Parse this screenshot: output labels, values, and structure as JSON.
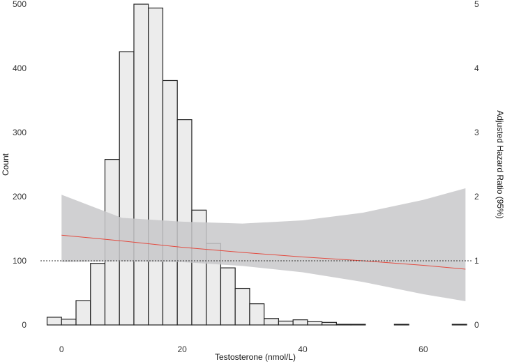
{
  "chart_data": {
    "type": "bar",
    "histogram": {
      "bin_width": 2.4,
      "bin_starts": [
        -2.4,
        0,
        2.4,
        4.8,
        7.2,
        9.6,
        12,
        14.4,
        16.8,
        19.2,
        21.6,
        24,
        26.4,
        28.8,
        31.2,
        33.6,
        36,
        38.4,
        40.8,
        43.2,
        45.6,
        48,
        50.4,
        52.8,
        55.2,
        57.6,
        60,
        62.4,
        64.8
      ],
      "values": [
        12,
        9,
        38,
        96,
        258,
        426,
        500,
        494,
        381,
        320,
        179,
        127,
        89,
        57,
        33,
        10,
        6,
        8,
        5,
        4,
        1,
        1,
        0,
        0,
        1,
        0,
        0,
        0,
        1
      ]
    },
    "hazard_line": {
      "x": [
        0,
        10,
        20,
        30,
        40,
        50,
        60,
        67
      ],
      "hr": [
        1.4,
        1.31,
        1.21,
        1.13,
        1.06,
        1.0,
        0.93,
        0.87
      ],
      "ci_lower": [
        0.98,
        0.99,
        0.98,
        0.92,
        0.82,
        0.67,
        0.48,
        0.37
      ],
      "ci_upper": [
        2.03,
        1.67,
        1.61,
        1.58,
        1.63,
        1.75,
        1.95,
        2.13
      ],
      "color": "#e34a3f",
      "band_color": "#c8c8ca"
    },
    "reference_line": 1,
    "xlabel": "Testosterone (nmol/L)",
    "ylabel_left": "Count",
    "ylabel_right": "Adjusted Hazard Ratio (95%)",
    "xlim": [
      -3.5,
      68
    ],
    "ylim_left": [
      0,
      500
    ],
    "ylim_right": [
      0,
      5
    ],
    "x_ticks": [
      0,
      20,
      40,
      60
    ],
    "y_ticks_left": [
      0,
      100,
      200,
      300,
      400,
      500
    ],
    "y_ticks_right": [
      0,
      1,
      2,
      3,
      4,
      5
    ],
    "bar_fill": "#ececec",
    "bar_stroke": "#222222",
    "grid": false
  }
}
